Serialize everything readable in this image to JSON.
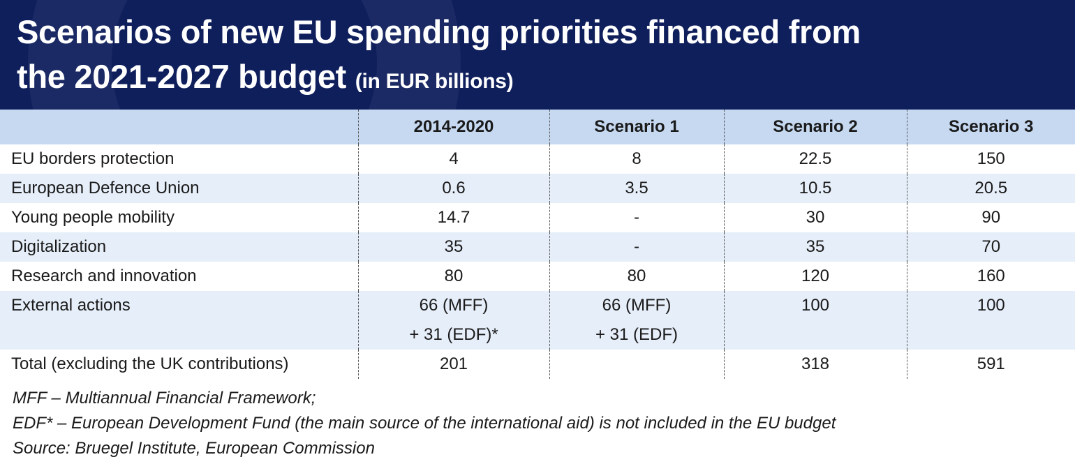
{
  "title": {
    "line1": "Scenarios of new EU spending priorities financed from",
    "line2": "the 2021-2027 budget",
    "unit": "(in EUR billions)"
  },
  "chart_data": {
    "type": "table",
    "columns": [
      "",
      "2014-2020",
      "Scenario 1",
      "Scenario 2",
      "Scenario 3"
    ],
    "rows": [
      {
        "label": "EU borders protection",
        "values": [
          [
            "4"
          ],
          [
            "8"
          ],
          [
            "22.5"
          ],
          [
            "150"
          ]
        ]
      },
      {
        "label": "European Defence Union",
        "values": [
          [
            "0.6"
          ],
          [
            "3.5"
          ],
          [
            "10.5"
          ],
          [
            "20.5"
          ]
        ]
      },
      {
        "label": "Young people mobility",
        "values": [
          [
            "14.7"
          ],
          [
            "-"
          ],
          [
            "30"
          ],
          [
            "90"
          ]
        ]
      },
      {
        "label": "Digitalization",
        "values": [
          [
            "35"
          ],
          [
            "-"
          ],
          [
            "35"
          ],
          [
            "70"
          ]
        ]
      },
      {
        "label": "Research and innovation",
        "values": [
          [
            "80"
          ],
          [
            "80"
          ],
          [
            "120"
          ],
          [
            "160"
          ]
        ]
      },
      {
        "label": "External actions",
        "values": [
          [
            "66 (MFF)",
            "+ 31 (EDF)*"
          ],
          [
            "66 (MFF)",
            "+ 31 (EDF)"
          ],
          [
            "100"
          ],
          [
            "100"
          ]
        ]
      },
      {
        "label": "Total (excluding the UK contributions)",
        "values": [
          [
            "201"
          ],
          [
            ""
          ],
          [
            "318"
          ],
          [
            "591"
          ]
        ]
      }
    ]
  },
  "notes": [
    "MFF – Multiannual Financial Framework;",
    "EDF* – European Development Fund (the main source of the international aid) is not included in the EU budget",
    "Source: Bruegel Institute, European Commission"
  ]
}
